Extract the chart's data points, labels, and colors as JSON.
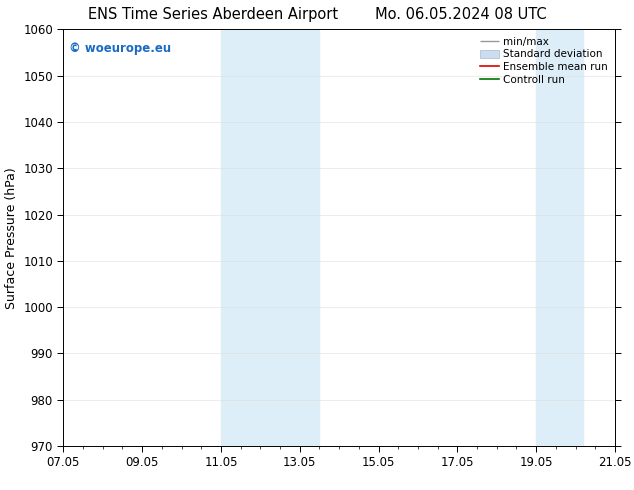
{
  "title_left": "ENS Time Series Aberdeen Airport",
  "title_right": "Mo. 06.05.2024 08 UTC",
  "ylabel": "Surface Pressure (hPa)",
  "ylim": [
    970,
    1060
  ],
  "yticks": [
    970,
    980,
    990,
    1000,
    1010,
    1020,
    1030,
    1040,
    1050,
    1060
  ],
  "xtick_labels": [
    "07.05",
    "09.05",
    "11.05",
    "13.05",
    "15.05",
    "17.05",
    "19.05",
    "21.05"
  ],
  "xtick_positions": [
    0,
    2,
    4,
    6,
    8,
    10,
    12,
    14
  ],
  "shaded_regions": [
    {
      "x_start": 4.0,
      "x_end": 6.5,
      "color": "#ddeef8"
    },
    {
      "x_start": 12.0,
      "x_end": 13.2,
      "color": "#ddeef8"
    }
  ],
  "watermark_text": "© woeurope.eu",
  "watermark_color": "#1a6bc4",
  "legend_items": [
    {
      "label": "min/max",
      "color": "#999999",
      "lw": 1.0,
      "type": "minmax"
    },
    {
      "label": "Standard deviation",
      "color": "#ccddef",
      "lw": 8,
      "type": "band"
    },
    {
      "label": "Ensemble mean run",
      "color": "#dd0000",
      "lw": 1.5,
      "type": "line"
    },
    {
      "label": "Controll run",
      "color": "#007700",
      "lw": 1.5,
      "type": "line"
    }
  ],
  "bg_color": "#ffffff",
  "grid_color": "#dddddd",
  "title_fontsize": 10.5,
  "tick_fontsize": 8.5,
  "label_fontsize": 9,
  "legend_fontsize": 7.5
}
